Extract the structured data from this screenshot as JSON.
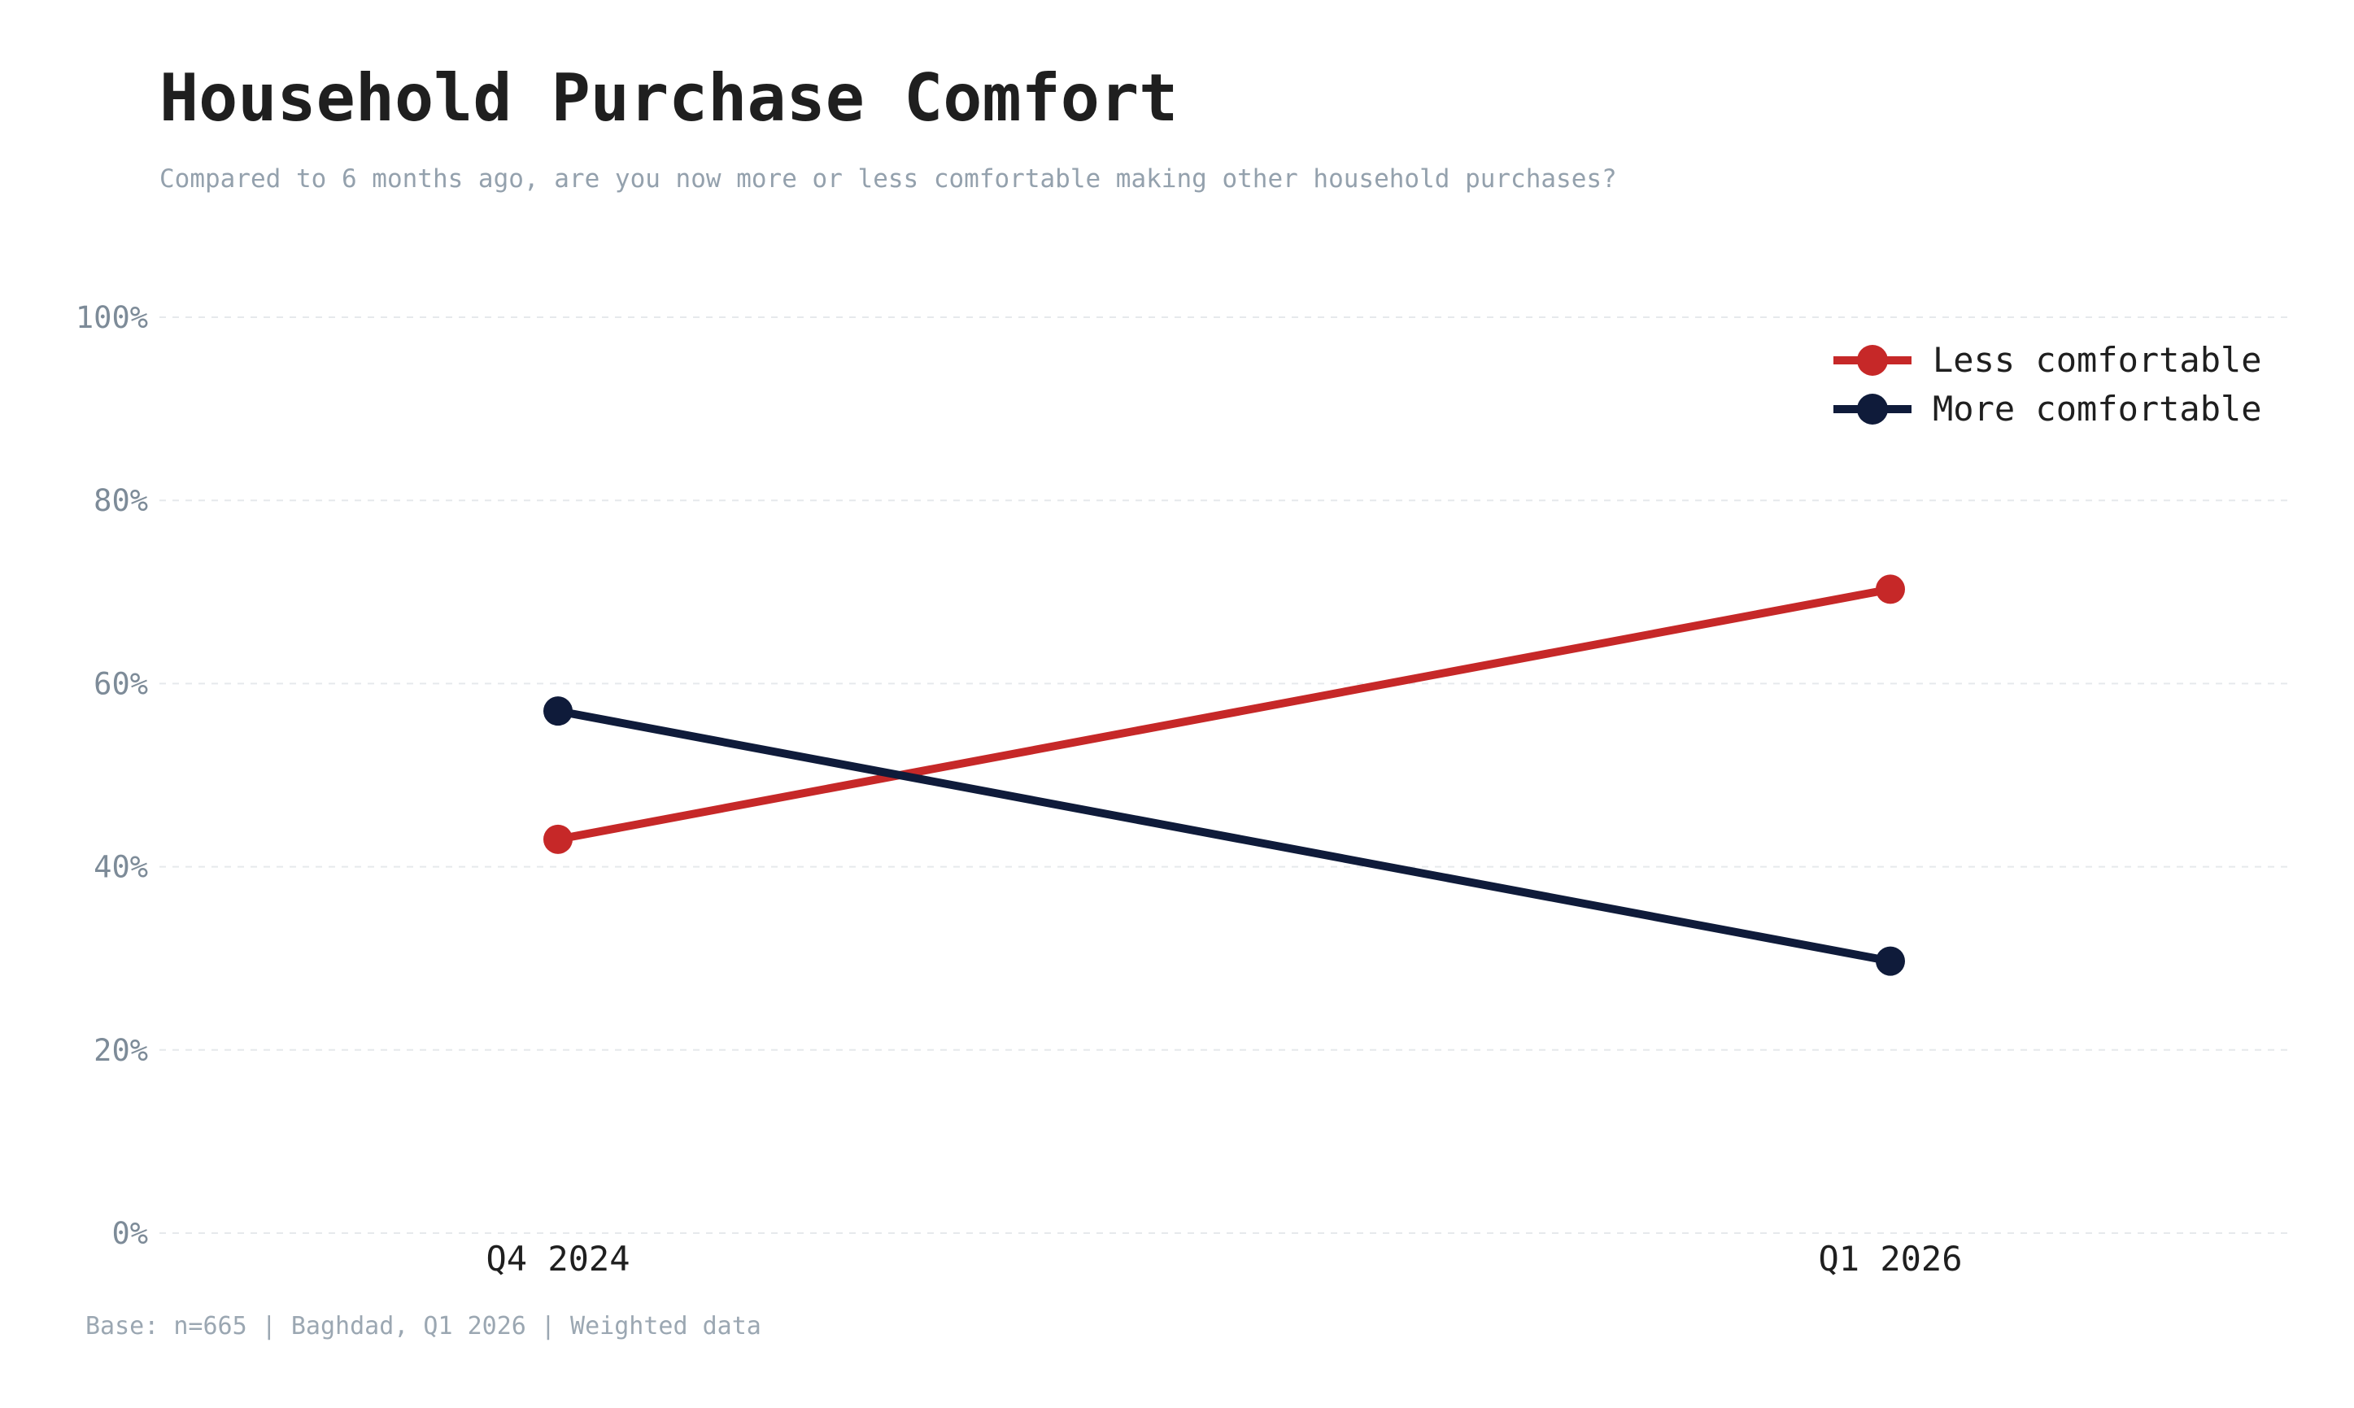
{
  "chart_data": {
    "type": "line",
    "title": "Household Purchase Comfort",
    "subtitle": "Compared to 6 months ago, are you now more or less comfortable making other household purchases?",
    "categories": [
      "Q4 2024",
      "Q1 2026"
    ],
    "series": [
      {
        "name": "Less comfortable",
        "values": [
          43,
          70.3
        ],
        "color": "#c62828"
      },
      {
        "name": "More comfortable",
        "values": [
          57,
          29.7
        ],
        "color": "#0f1b3a"
      }
    ],
    "ylim": [
      0,
      100
    ],
    "yticks": [
      0,
      20,
      40,
      60,
      80,
      100
    ],
    "ytick_labels": [
      "0%",
      "20%",
      "40%",
      "60%",
      "80%",
      "100%"
    ],
    "grid": true,
    "legend_position": "top-right",
    "footnote": "Base: n=665 | Baghdad, Q1 2026 | Weighted data"
  }
}
